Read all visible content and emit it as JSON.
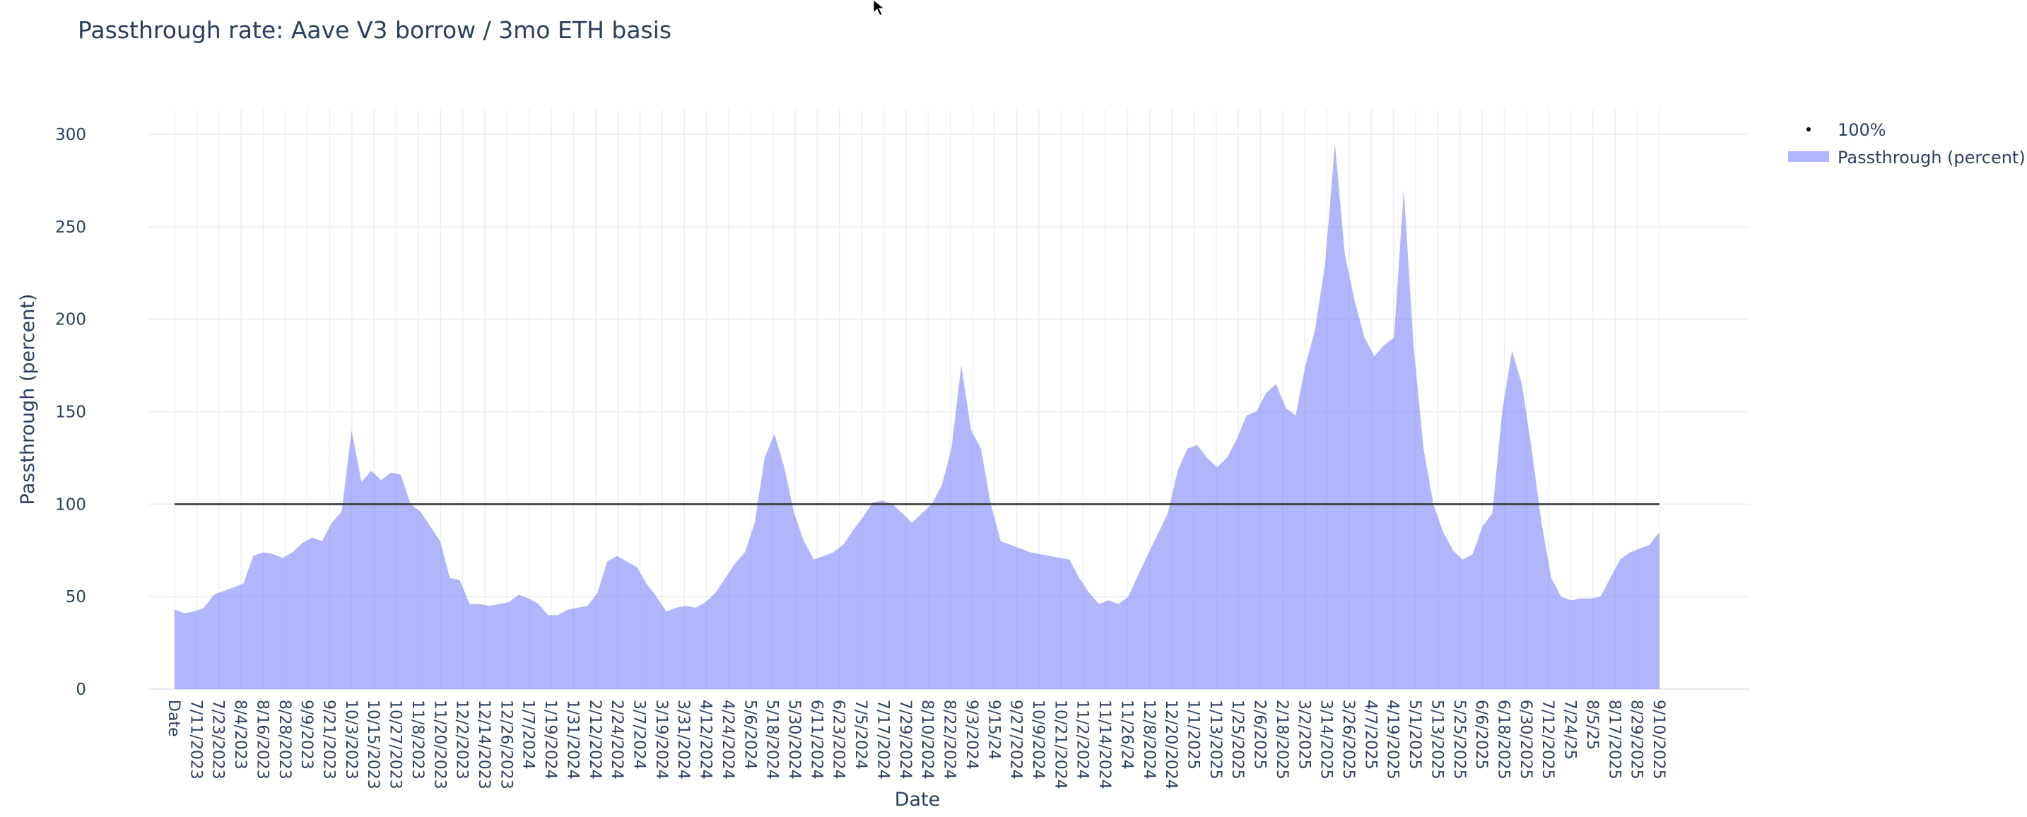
{
  "chart_data": {
    "type": "area",
    "title": "Passthrough rate: Aave V3 borrow / 3mo ETH basis",
    "xlabel": "Date",
    "ylabel": "Passthrough (percent)",
    "ylim": [
      0,
      300
    ],
    "y_ticks": [
      0,
      50,
      100,
      150,
      200,
      250,
      300
    ],
    "grid": true,
    "legend_position": "top-right",
    "x_tick_labels": [
      "Date",
      "7/11/2023",
      "7/23/2023",
      "8/4/2023",
      "8/16/2023",
      "8/28/2023",
      "9/9/2023",
      "9/21/2023",
      "10/3/2023",
      "10/15/2023",
      "10/27/2023",
      "11/8/2023",
      "11/20/2023",
      "12/2/2023",
      "12/14/2023",
      "12/26/2023",
      "1/7/2024",
      "1/19/2024",
      "1/31/2024",
      "2/12/2024",
      "2/24/2024",
      "3/7/2024",
      "3/19/2024",
      "3/31/2024",
      "4/12/2024",
      "4/24/2024",
      "5/6/2024",
      "5/18/2024",
      "5/30/2024",
      "6/11/2024",
      "6/23/2024",
      "7/5/2024",
      "7/17/2024",
      "7/29/2024",
      "8/10/2024",
      "8/22/2024",
      "9/3/2024",
      "9/15/24",
      "9/27/2024",
      "10/9/2024",
      "10/21/2024",
      "11/2/2024",
      "11/14/2024",
      "11/26/24",
      "12/8/2024",
      "12/20/2024",
      "1/1/2025",
      "1/13/2025",
      "1/25/2025",
      "2/6/2025",
      "2/18/2025",
      "3/2/2025",
      "3/14/2025",
      "3/26/2025",
      "4/7/2025",
      "4/19/2025",
      "5/1/2025",
      "5/13/2025",
      "5/25/2025",
      "6/6/2025",
      "6/18/2025",
      "6/30/2025",
      "7/12/2025",
      "7/24/25",
      "8/5/25",
      "8/17/2025",
      "8/29/2025",
      "9/10/2025"
    ],
    "series": [
      {
        "name": "100%",
        "kind": "reference-line",
        "color": "#000000",
        "value": 100
      },
      {
        "name": "Passthrough (percent)",
        "kind": "area",
        "color": "#636efa",
        "values": [
          43,
          41,
          42,
          44,
          51,
          53,
          55,
          57,
          72,
          74,
          73,
          71,
          74,
          79,
          82,
          80,
          90,
          96,
          140,
          112,
          118,
          113,
          117,
          116,
          100,
          96,
          88,
          80,
          60,
          59,
          46,
          46,
          45,
          46,
          47,
          51,
          49,
          46,
          40,
          40,
          43,
          44,
          45,
          52,
          69,
          72,
          69,
          66,
          57,
          50,
          42,
          44,
          45,
          44,
          47,
          52,
          60,
          68,
          74,
          90,
          125,
          138,
          120,
          95,
          80,
          70,
          72,
          74,
          78,
          86,
          93,
          101,
          102,
          100,
          95,
          90,
          95,
          100,
          110,
          130,
          175,
          140,
          130,
          100,
          80,
          78,
          76,
          74,
          73,
          72,
          71,
          70,
          60,
          52,
          46,
          48,
          46,
          50,
          62,
          73,
          84,
          95,
          118,
          130,
          132,
          125,
          120,
          125,
          135,
          148,
          150,
          160,
          165,
          152,
          148,
          175,
          195,
          230,
          295,
          235,
          210,
          190,
          180,
          186,
          190,
          270,
          185,
          130,
          100,
          85,
          75,
          70,
          73,
          88,
          95,
          150,
          183,
          165,
          130,
          90,
          60,
          50,
          48,
          49,
          49,
          50,
          60,
          70,
          74,
          76,
          78,
          85
        ]
      }
    ]
  }
}
